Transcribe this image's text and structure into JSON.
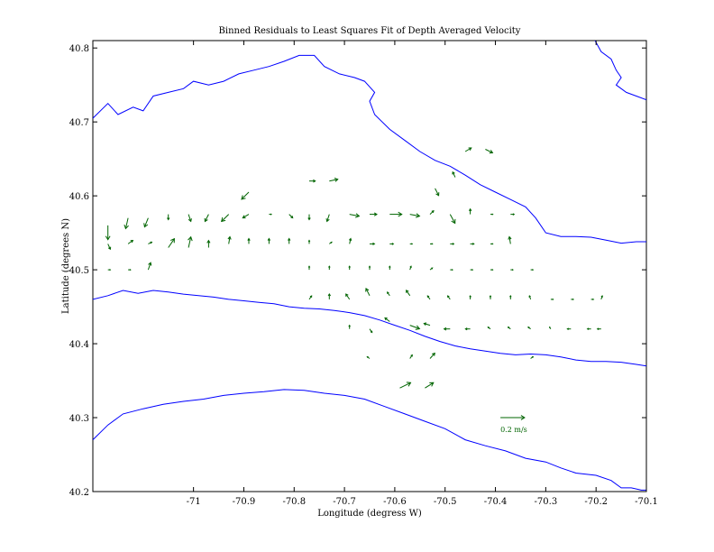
{
  "chart_data": {
    "type": "quiver",
    "title": "Binned Residuals to Least Squares Fit of Depth Averaged Velocity",
    "xlabel": "Longitude (degress W)",
    "ylabel": "Latitude (degrees N)",
    "xlim": [
      -71.2,
      -70.1
    ],
    "ylim": [
      40.2,
      40.81
    ],
    "xticks": [
      -71,
      -70.9,
      -70.8,
      -70.7,
      -70.6,
      -70.5,
      -70.4,
      -70.3,
      -70.2,
      -70.1
    ],
    "xtick_labels": [
      "-71",
      "-70.9",
      "-70.8",
      "-70.7",
      "-70.6",
      "-70.5",
      "-70.4",
      "-70.3",
      "-70.2",
      "-70.1"
    ],
    "yticks": [
      40.2,
      40.3,
      40.4,
      40.5,
      40.6,
      40.7,
      40.8
    ],
    "ytick_labels": [
      "40.2",
      "40.3",
      "40.4",
      "40.5",
      "40.6",
      "40.7",
      "40.8"
    ],
    "grid": false,
    "colors": {
      "coast": "#0000ff",
      "arrows": "#006400",
      "axes": "#000000"
    },
    "scale_arrow": {
      "lon": -70.39,
      "lat": 40.3,
      "u": 0.2,
      "v": 0,
      "label": "0.2 m/s"
    },
    "arrow_scale_deg_per_mps": 0.24,
    "contours": [
      {
        "name": "upper-contour",
        "points": [
          [
            -71.2,
            40.705
          ],
          [
            -71.17,
            40.725
          ],
          [
            -71.15,
            40.71
          ],
          [
            -71.12,
            40.72
          ],
          [
            -71.1,
            40.715
          ],
          [
            -71.08,
            40.735
          ],
          [
            -71.05,
            40.74
          ],
          [
            -71.02,
            40.745
          ],
          [
            -71.0,
            40.755
          ],
          [
            -70.97,
            40.75
          ],
          [
            -70.94,
            40.755
          ],
          [
            -70.91,
            40.765
          ],
          [
            -70.88,
            40.77
          ],
          [
            -70.85,
            40.775
          ],
          [
            -70.82,
            40.782
          ],
          [
            -70.79,
            40.79
          ],
          [
            -70.76,
            40.79
          ],
          [
            -70.74,
            40.775
          ],
          [
            -70.71,
            40.765
          ],
          [
            -70.68,
            40.76
          ],
          [
            -70.66,
            40.755
          ],
          [
            -70.64,
            40.74
          ],
          [
            -70.65,
            40.728
          ],
          [
            -70.64,
            40.71
          ],
          [
            -70.61,
            40.69
          ],
          [
            -70.58,
            40.675
          ],
          [
            -70.55,
            40.66
          ],
          [
            -70.52,
            40.648
          ],
          [
            -70.49,
            40.64
          ],
          [
            -70.46,
            40.628
          ],
          [
            -70.43,
            40.615
          ],
          [
            -70.4,
            40.605
          ],
          [
            -70.37,
            40.595
          ],
          [
            -70.34,
            40.585
          ],
          [
            -70.32,
            40.57
          ],
          [
            -70.3,
            40.55
          ],
          [
            -70.27,
            40.545
          ],
          [
            -70.24,
            40.545
          ],
          [
            -70.21,
            40.544
          ],
          [
            -70.18,
            40.54
          ],
          [
            -70.15,
            40.536
          ],
          [
            -70.12,
            40.538
          ],
          [
            -70.1,
            40.538
          ]
        ]
      },
      {
        "name": "middle-contour",
        "points": [
          [
            -71.2,
            40.46
          ],
          [
            -71.17,
            40.465
          ],
          [
            -71.14,
            40.472
          ],
          [
            -71.11,
            40.468
          ],
          [
            -71.08,
            40.472
          ],
          [
            -71.05,
            40.47
          ],
          [
            -71.02,
            40.467
          ],
          [
            -70.99,
            40.465
          ],
          [
            -70.96,
            40.463
          ],
          [
            -70.93,
            40.46
          ],
          [
            -70.9,
            40.458
          ],
          [
            -70.87,
            40.456
          ],
          [
            -70.84,
            40.454
          ],
          [
            -70.81,
            40.45
          ],
          [
            -70.78,
            40.448
          ],
          [
            -70.75,
            40.447
          ],
          [
            -70.72,
            40.445
          ],
          [
            -70.69,
            40.442
          ],
          [
            -70.66,
            40.438
          ],
          [
            -70.63,
            40.432
          ],
          [
            -70.6,
            40.425
          ],
          [
            -70.57,
            40.418
          ],
          [
            -70.54,
            40.41
          ],
          [
            -70.51,
            40.403
          ],
          [
            -70.48,
            40.397
          ],
          [
            -70.45,
            40.393
          ],
          [
            -70.42,
            40.39
          ],
          [
            -70.39,
            40.387
          ],
          [
            -70.36,
            40.385
          ],
          [
            -70.33,
            40.386
          ],
          [
            -70.3,
            40.385
          ],
          [
            -70.27,
            40.382
          ],
          [
            -70.24,
            40.378
          ],
          [
            -70.21,
            40.376
          ],
          [
            -70.18,
            40.376
          ],
          [
            -70.15,
            40.375
          ],
          [
            -70.12,
            40.372
          ],
          [
            -70.1,
            40.37
          ]
        ]
      },
      {
        "name": "lower-contour",
        "points": [
          [
            -71.2,
            40.27
          ],
          [
            -71.17,
            40.29
          ],
          [
            -71.14,
            40.305
          ],
          [
            -71.1,
            40.312
          ],
          [
            -71.06,
            40.318
          ],
          [
            -71.02,
            40.322
          ],
          [
            -70.98,
            40.325
          ],
          [
            -70.94,
            40.33
          ],
          [
            -70.9,
            40.333
          ],
          [
            -70.86,
            40.335
          ],
          [
            -70.82,
            40.338
          ],
          [
            -70.78,
            40.337
          ],
          [
            -70.74,
            40.333
          ],
          [
            -70.7,
            40.33
          ],
          [
            -70.66,
            40.325
          ],
          [
            -70.62,
            40.315
          ],
          [
            -70.58,
            40.305
          ],
          [
            -70.54,
            40.295
          ],
          [
            -70.5,
            40.285
          ],
          [
            -70.46,
            40.27
          ],
          [
            -70.42,
            40.262
          ],
          [
            -70.38,
            40.255
          ],
          [
            -70.34,
            40.245
          ],
          [
            -70.3,
            40.24
          ],
          [
            -70.27,
            40.232
          ],
          [
            -70.24,
            40.225
          ],
          [
            -70.2,
            40.222
          ],
          [
            -70.17,
            40.215
          ],
          [
            -70.15,
            40.205
          ],
          [
            -70.13,
            40.205
          ],
          [
            -70.11,
            40.202
          ],
          [
            -70.1,
            40.202
          ]
        ]
      },
      {
        "name": "upper-right-contour",
        "points": [
          [
            -70.21,
            40.82
          ],
          [
            -70.19,
            40.795
          ],
          [
            -70.17,
            40.785
          ],
          [
            -70.16,
            40.77
          ],
          [
            -70.15,
            40.76
          ],
          [
            -70.16,
            40.75
          ],
          [
            -70.14,
            40.74
          ],
          [
            -70.12,
            40.735
          ],
          [
            -70.1,
            40.73
          ]
        ]
      }
    ],
    "vectors": [
      {
        "lon": -71.17,
        "lat": 40.56,
        "u": 0,
        "v": -0.08
      },
      {
        "lon": -71.13,
        "lat": 40.57,
        "u": -0.02,
        "v": -0.06
      },
      {
        "lon": -71.09,
        "lat": 40.57,
        "u": -0.03,
        "v": -0.05
      },
      {
        "lon": -71.05,
        "lat": 40.575,
        "u": 0,
        "v": -0.03
      },
      {
        "lon": -71.01,
        "lat": 40.575,
        "u": 0.02,
        "v": -0.04
      },
      {
        "lon": -70.97,
        "lat": 40.575,
        "u": -0.03,
        "v": -0.04
      },
      {
        "lon": -70.93,
        "lat": 40.575,
        "u": -0.06,
        "v": -0.04
      },
      {
        "lon": -70.89,
        "lat": 40.575,
        "u": -0.05,
        "v": -0.02
      },
      {
        "lon": -70.85,
        "lat": 40.575,
        "u": 0.02,
        "v": 0
      },
      {
        "lon": -70.81,
        "lat": 40.575,
        "u": 0.03,
        "v": -0.02
      },
      {
        "lon": -70.77,
        "lat": 40.575,
        "u": 0,
        "v": -0.03
      },
      {
        "lon": -70.73,
        "lat": 40.575,
        "u": -0.02,
        "v": -0.04
      },
      {
        "lon": -70.69,
        "lat": 40.575,
        "u": 0.08,
        "v": -0.01
      },
      {
        "lon": -70.65,
        "lat": 40.575,
        "u": 0.06,
        "v": 0
      },
      {
        "lon": -70.61,
        "lat": 40.575,
        "u": 0.1,
        "v": 0
      },
      {
        "lon": -70.57,
        "lat": 40.575,
        "u": 0.08,
        "v": -0.01
      },
      {
        "lon": -70.53,
        "lat": 40.575,
        "u": 0.03,
        "v": 0.02
      },
      {
        "lon": -70.49,
        "lat": 40.575,
        "u": 0.04,
        "v": -0.05
      },
      {
        "lon": -70.45,
        "lat": 40.575,
        "u": 0,
        "v": 0.03
      },
      {
        "lon": -70.41,
        "lat": 40.575,
        "u": 0.02,
        "v": 0
      },
      {
        "lon": -70.37,
        "lat": 40.575,
        "u": 0.03,
        "v": 0
      },
      {
        "lon": -70.52,
        "lat": 40.61,
        "u": 0.03,
        "v": -0.04
      },
      {
        "lon": -70.48,
        "lat": 40.625,
        "u": -0.02,
        "v": 0.03
      },
      {
        "lon": -70.89,
        "lat": 40.605,
        "u": -0.06,
        "v": -0.04
      },
      {
        "lon": -70.77,
        "lat": 40.62,
        "u": 0.05,
        "v": 0
      },
      {
        "lon": -70.73,
        "lat": 40.62,
        "u": 0.07,
        "v": 0.01
      },
      {
        "lon": -70.46,
        "lat": 40.66,
        "u": 0.05,
        "v": 0.02
      },
      {
        "lon": -70.42,
        "lat": 40.663,
        "u": 0.06,
        "v": -0.02
      },
      {
        "lon": -71.17,
        "lat": 40.535,
        "u": 0.02,
        "v": -0.03
      },
      {
        "lon": -71.13,
        "lat": 40.535,
        "u": 0.04,
        "v": 0.02
      },
      {
        "lon": -71.09,
        "lat": 40.535,
        "u": 0.03,
        "v": 0.01
      },
      {
        "lon": -71.05,
        "lat": 40.53,
        "u": 0.05,
        "v": 0.05
      },
      {
        "lon": -71.01,
        "lat": 40.53,
        "u": 0.02,
        "v": 0.06
      },
      {
        "lon": -70.97,
        "lat": 40.53,
        "u": 0,
        "v": 0.04
      },
      {
        "lon": -70.93,
        "lat": 40.535,
        "u": 0.01,
        "v": 0.04
      },
      {
        "lon": -70.89,
        "lat": 40.535,
        "u": 0,
        "v": 0.03
      },
      {
        "lon": -70.85,
        "lat": 40.535,
        "u": 0,
        "v": 0.03
      },
      {
        "lon": -70.81,
        "lat": 40.535,
        "u": 0,
        "v": 0.03
      },
      {
        "lon": -70.77,
        "lat": 40.535,
        "u": 0,
        "v": 0.02
      },
      {
        "lon": -70.73,
        "lat": 40.535,
        "u": 0.02,
        "v": 0.01
      },
      {
        "lon": -70.69,
        "lat": 40.535,
        "u": 0.01,
        "v": 0.03
      },
      {
        "lon": -70.65,
        "lat": 40.535,
        "u": 0.04,
        "v": 0
      },
      {
        "lon": -70.61,
        "lat": 40.535,
        "u": 0.03,
        "v": 0
      },
      {
        "lon": -70.57,
        "lat": 40.535,
        "u": 0.02,
        "v": 0
      },
      {
        "lon": -70.53,
        "lat": 40.535,
        "u": 0.02,
        "v": 0
      },
      {
        "lon": -70.49,
        "lat": 40.535,
        "u": 0.03,
        "v": 0
      },
      {
        "lon": -70.45,
        "lat": 40.535,
        "u": 0.03,
        "v": 0
      },
      {
        "lon": -70.41,
        "lat": 40.535,
        "u": 0.02,
        "v": 0
      },
      {
        "lon": -70.37,
        "lat": 40.535,
        "u": -0.01,
        "v": 0.04
      },
      {
        "lon": -71.17,
        "lat": 40.5,
        "u": 0.02,
        "v": 0
      },
      {
        "lon": -71.13,
        "lat": 40.5,
        "u": 0.02,
        "v": 0
      },
      {
        "lon": -71.09,
        "lat": 40.5,
        "u": 0.02,
        "v": 0.04
      },
      {
        "lon": -70.77,
        "lat": 40.5,
        "u": 0,
        "v": 0.02
      },
      {
        "lon": -70.73,
        "lat": 40.5,
        "u": 0,
        "v": 0.02
      },
      {
        "lon": -70.69,
        "lat": 40.5,
        "u": 0,
        "v": 0.02
      },
      {
        "lon": -70.65,
        "lat": 40.5,
        "u": 0,
        "v": 0.02
      },
      {
        "lon": -70.61,
        "lat": 40.5,
        "u": 0,
        "v": 0.02
      },
      {
        "lon": -70.57,
        "lat": 40.5,
        "u": 0.01,
        "v": 0.02
      },
      {
        "lon": -70.53,
        "lat": 40.5,
        "u": 0.02,
        "v": 0.01
      },
      {
        "lon": -70.49,
        "lat": 40.5,
        "u": 0.02,
        "v": 0
      },
      {
        "lon": -70.45,
        "lat": 40.5,
        "u": 0.02,
        "v": 0
      },
      {
        "lon": -70.41,
        "lat": 40.5,
        "u": 0.02,
        "v": 0
      },
      {
        "lon": -70.37,
        "lat": 40.5,
        "u": 0.02,
        "v": 0
      },
      {
        "lon": -70.33,
        "lat": 40.5,
        "u": 0.02,
        "v": 0
      },
      {
        "lon": -70.77,
        "lat": 40.46,
        "u": 0.02,
        "v": 0.02
      },
      {
        "lon": -70.73,
        "lat": 40.46,
        "u": 0,
        "v": 0.03
      },
      {
        "lon": -70.69,
        "lat": 40.46,
        "u": -0.03,
        "v": 0.03
      },
      {
        "lon": -70.65,
        "lat": 40.465,
        "u": -0.03,
        "v": 0.04
      },
      {
        "lon": -70.61,
        "lat": 40.465,
        "u": -0.02,
        "v": 0.02
      },
      {
        "lon": -70.57,
        "lat": 40.465,
        "u": -0.03,
        "v": 0.03
      },
      {
        "lon": -70.53,
        "lat": 40.46,
        "u": -0.02,
        "v": 0.02
      },
      {
        "lon": -70.49,
        "lat": 40.46,
        "u": -0.02,
        "v": 0.02
      },
      {
        "lon": -70.45,
        "lat": 40.46,
        "u": 0,
        "v": 0.02
      },
      {
        "lon": -70.41,
        "lat": 40.46,
        "u": 0,
        "v": 0.02
      },
      {
        "lon": -70.37,
        "lat": 40.46,
        "u": 0,
        "v": 0.02
      },
      {
        "lon": -70.33,
        "lat": 40.46,
        "u": -0.01,
        "v": 0.02
      },
      {
        "lon": -70.29,
        "lat": 40.46,
        "u": 0.02,
        "v": 0
      },
      {
        "lon": -70.25,
        "lat": 40.46,
        "u": 0.02,
        "v": 0
      },
      {
        "lon": -70.21,
        "lat": 40.46,
        "u": 0.02,
        "v": 0
      },
      {
        "lon": -70.19,
        "lat": 40.46,
        "u": 0.01,
        "v": 0.02
      },
      {
        "lon": -70.69,
        "lat": 40.42,
        "u": 0,
        "v": 0.02
      },
      {
        "lon": -70.65,
        "lat": 40.42,
        "u": 0.02,
        "v": -0.02
      },
      {
        "lon": -70.61,
        "lat": 40.43,
        "u": -0.04,
        "v": 0.02
      },
      {
        "lon": -70.57,
        "lat": 40.425,
        "u": 0.08,
        "v": -0.02
      },
      {
        "lon": -70.53,
        "lat": 40.425,
        "u": -0.05,
        "v": 0.01
      },
      {
        "lon": -70.49,
        "lat": 40.42,
        "u": -0.05,
        "v": 0
      },
      {
        "lon": -70.45,
        "lat": 40.42,
        "u": -0.04,
        "v": 0
      },
      {
        "lon": -70.41,
        "lat": 40.42,
        "u": -0.02,
        "v": 0.01
      },
      {
        "lon": -70.37,
        "lat": 40.42,
        "u": -0.02,
        "v": 0.01
      },
      {
        "lon": -70.33,
        "lat": 40.42,
        "u": -0.02,
        "v": 0.01
      },
      {
        "lon": -70.29,
        "lat": 40.42,
        "u": -0.01,
        "v": 0.01
      },
      {
        "lon": -70.25,
        "lat": 40.42,
        "u": -0.03,
        "v": 0
      },
      {
        "lon": -70.21,
        "lat": 40.42,
        "u": -0.03,
        "v": 0
      },
      {
        "lon": -70.19,
        "lat": 40.42,
        "u": -0.03,
        "v": 0
      },
      {
        "lon": -70.65,
        "lat": 40.38,
        "u": -0.02,
        "v": 0.01
      },
      {
        "lon": -70.57,
        "lat": 40.38,
        "u": 0.02,
        "v": 0.02
      },
      {
        "lon": -70.53,
        "lat": 40.38,
        "u": 0.04,
        "v": 0.03
      },
      {
        "lon": -70.33,
        "lat": 40.38,
        "u": 0.02,
        "v": 0.01
      },
      {
        "lon": -70.59,
        "lat": 40.34,
        "u": 0.09,
        "v": 0.03
      },
      {
        "lon": -70.54,
        "lat": 40.34,
        "u": 0.07,
        "v": 0.03
      }
    ]
  }
}
